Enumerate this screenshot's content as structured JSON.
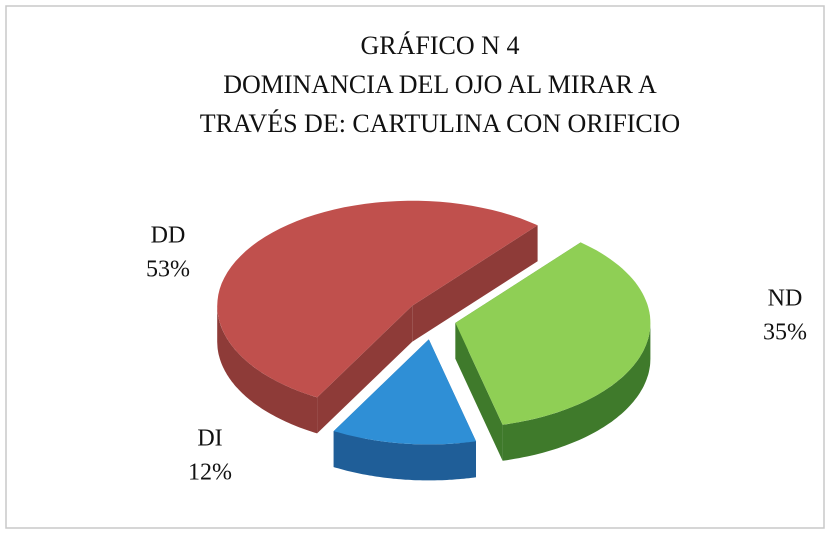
{
  "chart_data": {
    "type": "pie",
    "title": [
      "GRÁFICO N  4",
      "DOMINANCIA DEL OJO AL MIRAR A",
      "TRAVÉS DE: CARTULINA CON ORIFICIO"
    ],
    "categories": [
      "ND",
      "DI",
      "DD"
    ],
    "values": [
      35,
      12,
      53
    ],
    "value_labels": [
      "35%",
      "12%",
      "53%"
    ],
    "colors": [
      "#8fcf55",
      "#2f8fd6",
      "#c0504d"
    ],
    "side_colors": [
      "#3f7a2b",
      "#1f5e98",
      "#8e3b38"
    ]
  }
}
